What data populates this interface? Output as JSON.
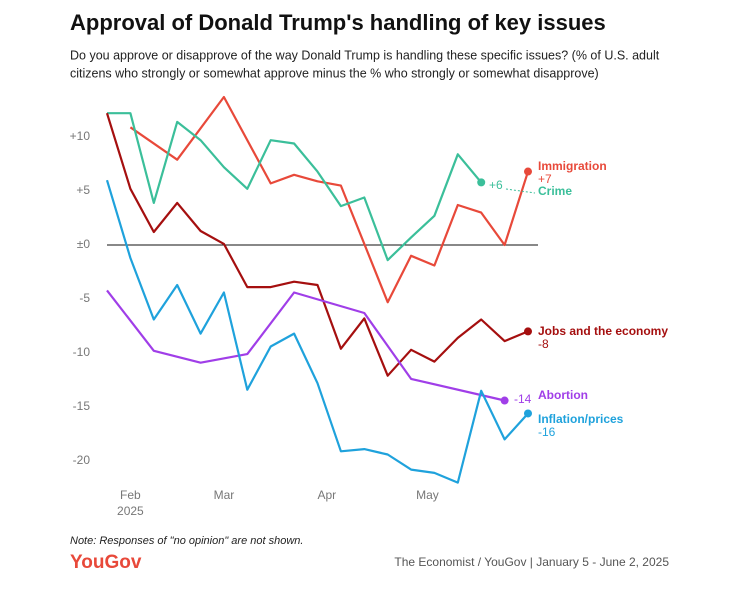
{
  "chart_data": {
    "type": "line",
    "title": "Approval of Donald Trump's handling of key issues",
    "subtitle": [
      "Do you approve or disapprove of the way Donald Trump is handling these specific issues? (% of U.S. adult",
      "citizens who strongly or somewhat approve minus the % who strongly or somewhat disapprove)"
    ],
    "note": "Note: Responses of \"no opinion\" are not shown.",
    "logo": "YouGov",
    "source": "The Economist / YouGov | January 5 - June 2, 2025",
    "xlim": [
      0,
      18
    ],
    "xticks": [
      {
        "value": 1,
        "label": "Feb"
      },
      {
        "value": 5,
        "label": "Mar"
      },
      {
        "value": 9.4,
        "label": "Apr"
      },
      {
        "value": 13.7,
        "label": "May"
      }
    ],
    "xtick_year": "2025",
    "ylim": [
      -22,
      13
    ],
    "yticks": [
      {
        "value": 10,
        "label": "+10"
      },
      {
        "value": 5,
        "label": "+5"
      },
      {
        "value": 0,
        "label": "±0"
      },
      -5,
      -10,
      -15,
      -20
    ],
    "grid": false,
    "zero_line": true,
    "series": [
      {
        "name": "Immigration",
        "color": "#e8493a",
        "x": [
          1,
          3,
          5,
          7,
          8,
          9,
          10,
          12,
          13,
          14,
          15,
          16,
          17,
          18
        ],
        "values": [
          10.9,
          7.9,
          13.7,
          5.7,
          6.5,
          5.9,
          5.5,
          -5.3,
          -1.0,
          -1.9,
          3.7,
          3.0,
          0,
          6.8
        ],
        "value_labels": [
          null,
          null,
          null,
          null,
          null,
          null,
          null,
          null,
          null,
          null,
          null,
          null,
          null,
          "+7"
        ]
      },
      {
        "name": "Crime",
        "color": "#3bbf9a",
        "x": [
          0,
          1,
          2,
          3,
          4,
          5,
          6,
          7,
          8,
          9,
          10,
          11,
          12,
          13,
          14,
          15,
          16
        ],
        "values": [
          12.2,
          12.2,
          3.9,
          11.4,
          9.7,
          7.2,
          5.2,
          9.7,
          9.4,
          6.8,
          3.6,
          4.4,
          -1.4,
          0.7,
          2.7,
          8.4,
          5.8
        ],
        "value_labels": [
          null,
          null,
          null,
          null,
          null,
          null,
          null,
          null,
          null,
          null,
          null,
          null,
          null,
          null,
          null,
          null,
          "+6"
        ]
      },
      {
        "name": "Jobs and the economy",
        "color": "#a50f0f",
        "x": [
          0,
          1,
          2,
          3,
          4,
          5,
          6,
          7,
          8,
          9,
          10,
          11,
          12,
          13,
          14,
          15,
          16,
          17,
          18
        ],
        "values": [
          12.2,
          5.2,
          1.2,
          3.9,
          1.3,
          0.1,
          -3.9,
          -3.9,
          -3.4,
          -3.7,
          -9.6,
          -6.8,
          -12.1,
          -9.7,
          -10.8,
          -8.6,
          -6.9,
          -8.9,
          -8.0
        ],
        "value_labels": [
          null,
          null,
          null,
          null,
          null,
          null,
          null,
          null,
          null,
          null,
          null,
          null,
          null,
          null,
          null,
          null,
          null,
          null,
          "-8"
        ]
      },
      {
        "name": "Abortion",
        "color": "#a03ee8",
        "x": [
          0,
          2,
          4,
          6,
          8,
          11,
          13,
          17
        ],
        "values": [
          -4.2,
          -9.8,
          -10.9,
          -10.1,
          -4.4,
          -6.3,
          -12.4,
          -14.4
        ],
        "value_labels": [
          null,
          null,
          null,
          null,
          null,
          null,
          null,
          "-14"
        ]
      },
      {
        "name": "Inflation/prices",
        "color": "#1fa2dc",
        "x": [
          0,
          1,
          2,
          3,
          4,
          5,
          6,
          7,
          8,
          9,
          10,
          11,
          12,
          13,
          14,
          15,
          16,
          17,
          18
        ],
        "values": [
          6.0,
          -1.2,
          -6.9,
          -3.7,
          -8.2,
          -4.4,
          -13.4,
          -9.4,
          -8.2,
          -12.8,
          -19.1,
          -18.9,
          -19.4,
          -20.8,
          -21.1,
          -22.0,
          -13.5,
          -18.0,
          -15.6
        ],
        "value_labels": [
          null,
          null,
          null,
          null,
          null,
          null,
          null,
          null,
          null,
          null,
          null,
          null,
          null,
          null,
          null,
          null,
          null,
          null,
          "-16"
        ]
      }
    ]
  }
}
